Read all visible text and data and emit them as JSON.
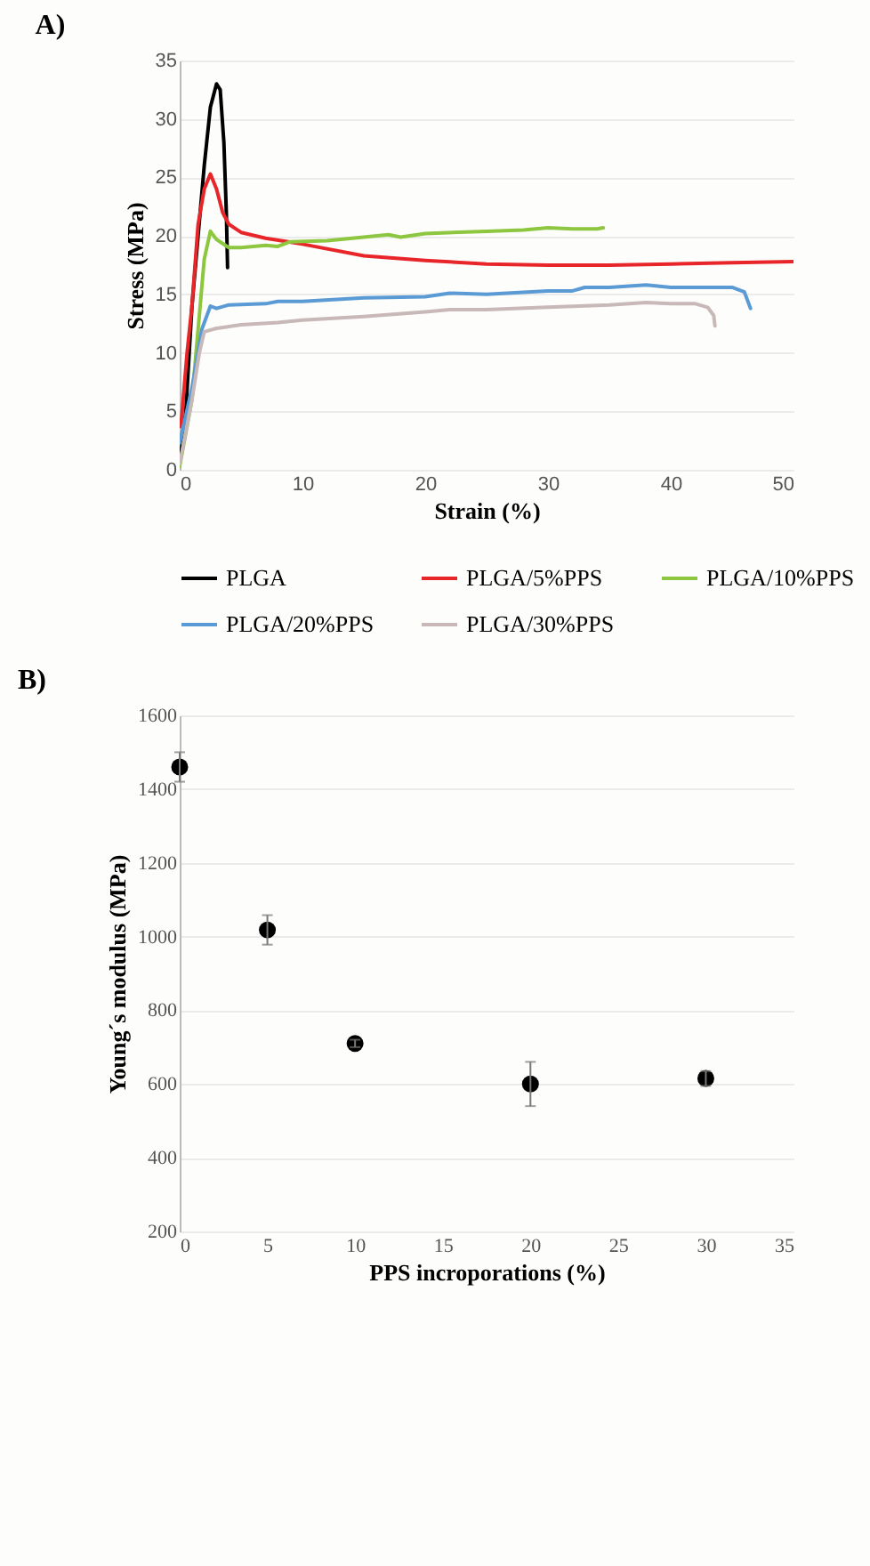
{
  "chart_data": [
    {
      "type": "line",
      "title": "A)",
      "xlabel": "Strain (%)",
      "ylabel": "Stress (MPa)",
      "xlim": [
        0,
        50
      ],
      "xticks": [
        0,
        10,
        20,
        30,
        40,
        50
      ],
      "ylim": [
        0,
        35
      ],
      "yticks": [
        0,
        5,
        10,
        15,
        20,
        25,
        30,
        35
      ],
      "grid": "y",
      "legend": "bottom",
      "series": [
        {
          "name": "PLGA",
          "color": "#000000",
          "x": [
            0,
            0.5,
            1,
            1.5,
            2,
            2.5,
            3,
            3.3,
            3.6,
            3.8,
            3.9
          ],
          "values": [
            0.5,
            5,
            14,
            20,
            26,
            31,
            33,
            32.5,
            28,
            22,
            17.3
          ]
        },
        {
          "name": "PLGA/5%PPS",
          "color": "#e8262a",
          "x": [
            0.1,
            0.6,
            1,
            1.5,
            2,
            2.5,
            3,
            3.5,
            4,
            5,
            7,
            10,
            15,
            20,
            25,
            30,
            35,
            40,
            45,
            50
          ],
          "values": [
            3.7,
            10,
            14,
            21,
            24,
            25.3,
            24,
            22,
            21,
            20.3,
            19.8,
            19.3,
            18.3,
            17.9,
            17.6,
            17.5,
            17.5,
            17.6,
            17.7,
            17.8
          ]
        },
        {
          "name": "PLGA/10%PPS",
          "color": "#8dc63f",
          "x": [
            0,
            1,
            1.5,
            2,
            2.5,
            3,
            4,
            5,
            7,
            8,
            9,
            12,
            15,
            17,
            18,
            20,
            25,
            28,
            30,
            32,
            34,
            34.5
          ],
          "values": [
            0.3,
            6,
            12,
            18,
            20.4,
            19.7,
            19,
            19,
            19.2,
            19.1,
            19.5,
            19.6,
            19.9,
            20.1,
            19.9,
            20.2,
            20.4,
            20.5,
            20.7,
            20.6,
            20.6,
            20.7
          ]
        },
        {
          "name": "PLGA/20%PPS",
          "color": "#5b9bd5",
          "x": [
            0,
            1,
            1.8,
            2.5,
            3,
            4,
            7,
            8,
            10,
            15,
            20,
            22,
            25,
            30,
            32,
            33,
            35,
            38,
            40,
            44,
            45,
            46,
            46.5
          ],
          "values": [
            2.3,
            7,
            12,
            14,
            13.8,
            14.1,
            14.2,
            14.4,
            14.4,
            14.7,
            14.8,
            15.1,
            15,
            15.3,
            15.3,
            15.6,
            15.6,
            15.8,
            15.6,
            15.6,
            15.6,
            15.2,
            13.8
          ]
        },
        {
          "name": "PLGA/30%PPS",
          "color": "#c8b8b8",
          "x": [
            0,
            1,
            1.6,
            2,
            3,
            5,
            8,
            10,
            15,
            20,
            22,
            25,
            30,
            35,
            38,
            40,
            42,
            43,
            43.5,
            43.6
          ],
          "values": [
            0.5,
            6,
            10,
            11.8,
            12.1,
            12.4,
            12.6,
            12.8,
            13.1,
            13.5,
            13.7,
            13.7,
            13.9,
            14.1,
            14.3,
            14.2,
            14.2,
            13.9,
            13.2,
            12.3
          ]
        }
      ]
    },
    {
      "type": "scatter",
      "title": "B)",
      "xlabel": "PPS incroporations (%)",
      "ylabel": "Young´s modulus (MPa)",
      "xlim": [
        0,
        35
      ],
      "xticks": [
        0,
        5,
        10,
        15,
        20,
        25,
        30,
        35
      ],
      "ylim": [
        200,
        1600
      ],
      "yticks": [
        200,
        400,
        600,
        800,
        1000,
        1200,
        1400,
        1600
      ],
      "grid": "y",
      "marker": "circle",
      "series": [
        {
          "color": "#000000",
          "x": [
            0,
            5,
            10,
            20,
            30
          ],
          "values": [
            1460,
            1018,
            710,
            600,
            615
          ],
          "errors": [
            40,
            40,
            10,
            60,
            20
          ]
        }
      ]
    }
  ]
}
